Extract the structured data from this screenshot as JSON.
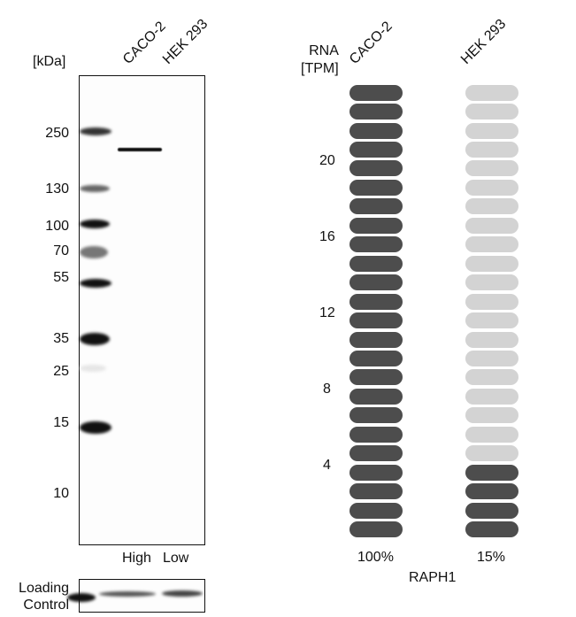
{
  "western_blot": {
    "unit_label": "[kDa]",
    "lanes": [
      "CACO-2",
      "HEK 293"
    ],
    "markers": [
      "250",
      "130",
      "100",
      "70",
      "55",
      "35",
      "25",
      "15",
      "10"
    ],
    "expression_labels": [
      "High",
      "Low"
    ],
    "loading_control_label_line1": "Loading",
    "loading_control_label_line2": "Control"
  },
  "rna": {
    "axis_label_line1": "RNA",
    "axis_label_line2": "[TPM]",
    "samples": [
      "CACO-2",
      "HEK 293"
    ],
    "ticks": [
      "4",
      "8",
      "12",
      "16",
      "20"
    ],
    "percentages": [
      "100%",
      "15%"
    ],
    "gene": "RAPH1",
    "colors": {
      "filled": "#4d4d4d",
      "empty": "#d3d3d3"
    }
  },
  "chart_data": {
    "type": "bar",
    "title": "RAPH1",
    "ylabel": "RNA [TPM]",
    "categories": [
      "CACO-2",
      "HEK 293"
    ],
    "series": [
      {
        "name": "filled units (of 24)",
        "values": [
          24,
          4
        ]
      }
    ],
    "relative_expression_percent": [
      100,
      15
    ],
    "yticks": [
      4,
      8,
      12,
      16,
      20
    ],
    "ylim": [
      0,
      24
    ],
    "grid": false,
    "western_blot_markers_kDa": [
      250,
      130,
      100,
      70,
      55,
      35,
      25,
      15,
      10
    ],
    "western_blot_lanes": [
      "CACO-2",
      "HEK 293"
    ],
    "western_blot_band_kDa_approx": 220,
    "expression_labels": [
      "High",
      "Low"
    ]
  }
}
